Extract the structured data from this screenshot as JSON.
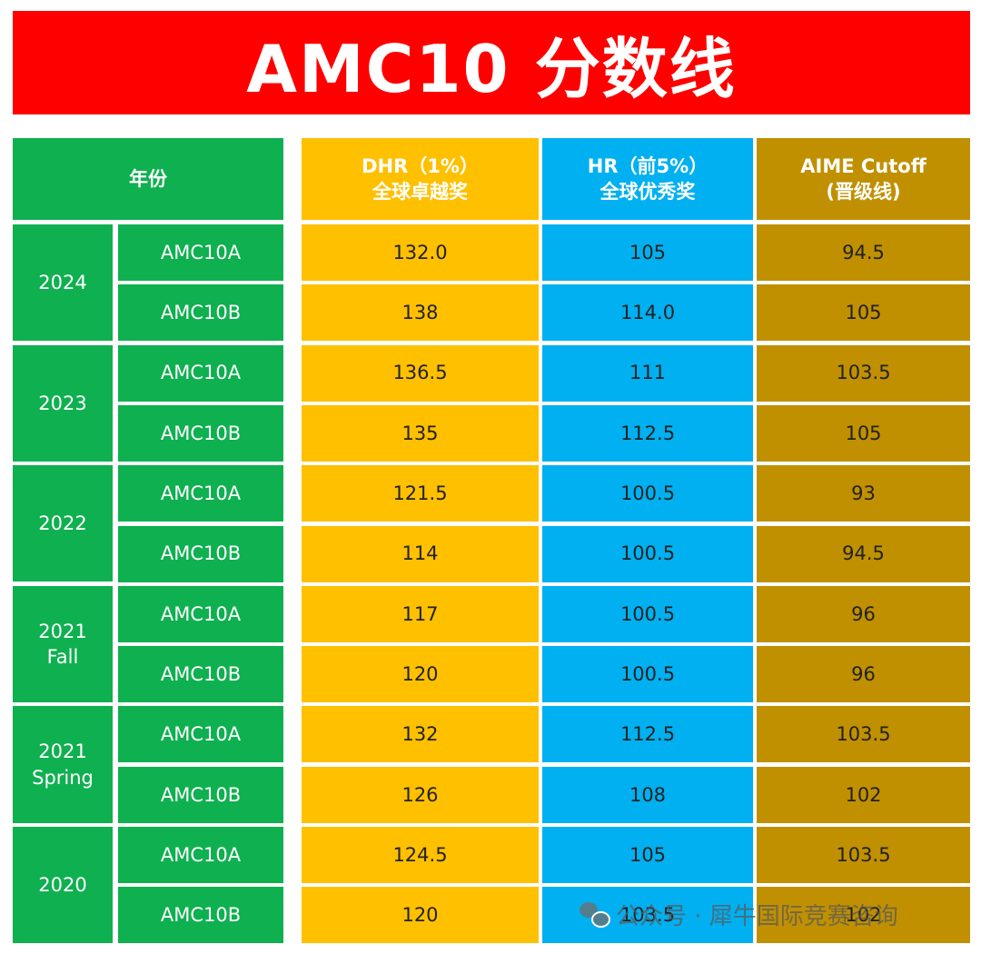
{
  "title": "AMC10  分数线",
  "header": {
    "year": "年份",
    "dhr_line1": "DHR（1%）",
    "dhr_line2": "全球卓越奖",
    "hr_line1": "HR（前5%）",
    "hr_line2": "全球优秀奖",
    "aime_line1": "AIME Cutoff",
    "aime_line2": "(晋级线)"
  },
  "groups": [
    {
      "year_line1": "2024",
      "year_line2": "",
      "rows": [
        {
          "exam": "AMC10A",
          "dhr": "132.0",
          "hr": "105",
          "aime": "94.5"
        },
        {
          "exam": "AMC10B",
          "dhr": "138",
          "hr": "114.0",
          "aime": "105"
        }
      ]
    },
    {
      "year_line1": "2023",
      "year_line2": "",
      "rows": [
        {
          "exam": "AMC10A",
          "dhr": "136.5",
          "hr": "111",
          "aime": "103.5"
        },
        {
          "exam": "AMC10B",
          "dhr": "135",
          "hr": "112.5",
          "aime": "105"
        }
      ]
    },
    {
      "year_line1": "2022",
      "year_line2": "",
      "rows": [
        {
          "exam": "AMC10A",
          "dhr": "121.5",
          "hr": "100.5",
          "aime": "93"
        },
        {
          "exam": "AMC10B",
          "dhr": "114",
          "hr": "100.5",
          "aime": "94.5"
        }
      ]
    },
    {
      "year_line1": "2021",
      "year_line2": "Fall",
      "rows": [
        {
          "exam": "AMC10A",
          "dhr": "117",
          "hr": "100.5",
          "aime": "96"
        },
        {
          "exam": "AMC10B",
          "dhr": "120",
          "hr": "100.5",
          "aime": "96"
        }
      ]
    },
    {
      "year_line1": "2021",
      "year_line2": "Spring",
      "rows": [
        {
          "exam": "AMC10A",
          "dhr": "132",
          "hr": "112.5",
          "aime": "103.5"
        },
        {
          "exam": "AMC10B",
          "dhr": "126",
          "hr": "108",
          "aime": "102"
        }
      ]
    },
    {
      "year_line1": "2020",
      "year_line2": "",
      "rows": [
        {
          "exam": "AMC10A",
          "dhr": "124.5",
          "hr": "105",
          "aime": "103.5"
        },
        {
          "exam": "AMC10B",
          "dhr": "120",
          "hr": "103.5",
          "aime": "102"
        }
      ]
    }
  ],
  "watermark": {
    "text": "公众号 · 犀牛国际竞赛咨询",
    "icon": "wechat-icon"
  },
  "colors": {
    "title_bg": "#ff0000",
    "year_bg": "#0fb050",
    "dhr_bg": "#ffc000",
    "hr_bg": "#00b0f0",
    "aime_bg": "#c09000"
  }
}
